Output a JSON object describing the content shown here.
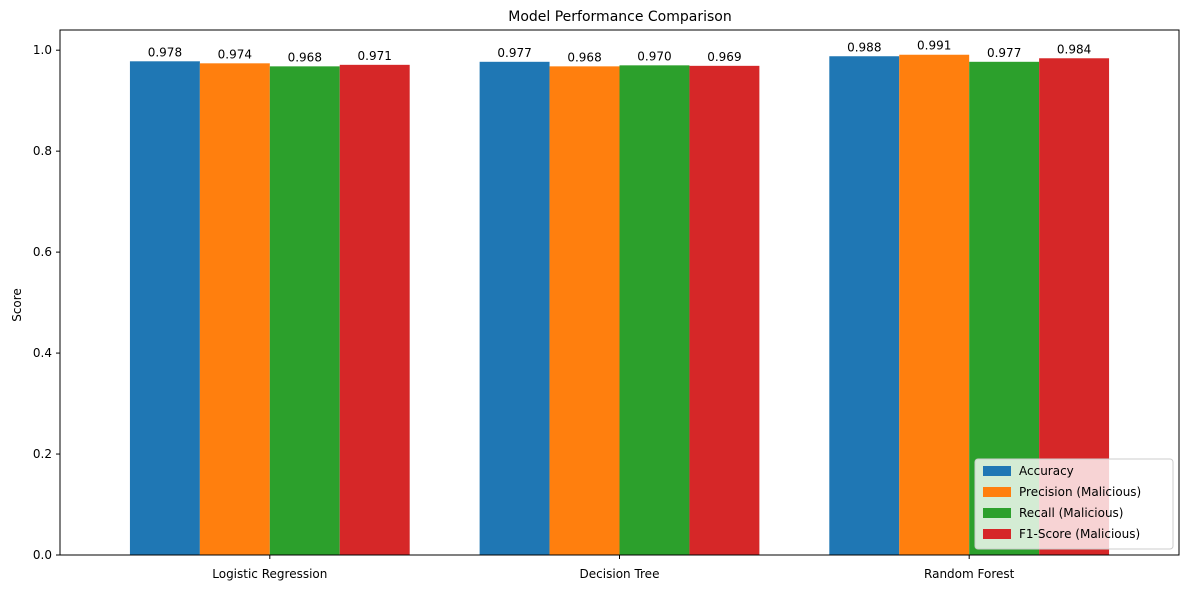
{
  "chart_data": {
    "type": "bar",
    "title": "Model Performance Comparison",
    "xlabel": "",
    "ylabel": "Score",
    "ylim": [
      0,
      1.04
    ],
    "yticks": [
      "0.0",
      "0.2",
      "0.4",
      "0.6",
      "0.8",
      "1.0"
    ],
    "categories": [
      "Logistic Regression",
      "Decision Tree",
      "Random Forest"
    ],
    "series": [
      {
        "name": "Accuracy",
        "color": "#1f77b4",
        "values": [
          0.978,
          0.977,
          0.988
        ],
        "labels": [
          "0.978",
          "0.977",
          "0.988"
        ]
      },
      {
        "name": "Precision (Malicious)",
        "color": "#ff7f0e",
        "values": [
          0.974,
          0.968,
          0.991
        ],
        "labels": [
          "0.974",
          "0.968",
          "0.991"
        ]
      },
      {
        "name": "Recall (Malicious)",
        "color": "#2ca02c",
        "values": [
          0.968,
          0.97,
          0.977
        ],
        "labels": [
          "0.968",
          "0.970",
          "0.977"
        ]
      },
      {
        "name": "F1-Score (Malicious)",
        "color": "#d62728",
        "values": [
          0.971,
          0.969,
          0.984
        ],
        "labels": [
          "0.971",
          "0.969",
          "0.984"
        ]
      }
    ],
    "grid": false,
    "legend_position": "lower right"
  }
}
